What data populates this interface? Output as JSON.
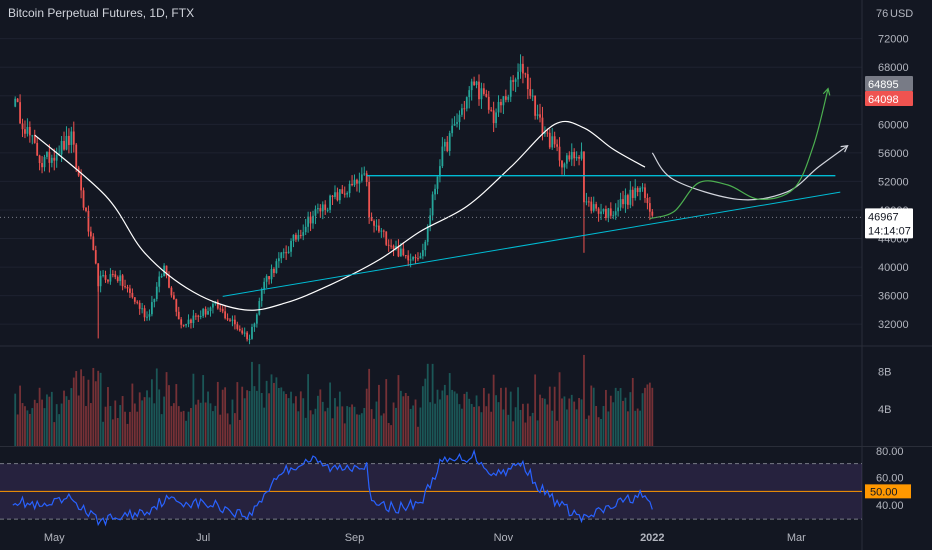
{
  "title": "Bitcoin Perpetual Futures, 1D, FTX",
  "currency": "USD",
  "price_axis_top_partial": "76",
  "colors": {
    "background": "#131722",
    "up": "#26a69a",
    "down": "#ef5350",
    "moving_average": "#ffffff",
    "channel_line": "#00bcd4",
    "projection_green": "#4caf50",
    "projection_white": "#d1d4dc",
    "rsi_line": "#2962ff",
    "rsi_band": "#7e57c2",
    "rsi_midline": "#ff9800"
  },
  "price_tags": {
    "high_label": "64895",
    "low_label": "64098",
    "current_label": "46967",
    "countdown": "14:14:07"
  },
  "rsi_axis": {
    "mid_label": "50.00"
  },
  "chart_data": [
    {
      "type": "candlestick",
      "title": "Bitcoin Perpetual Futures, 1D, FTX",
      "x_labels": [
        "May",
        "Jul",
        "Sep",
        "Nov",
        "2022",
        "Mar"
      ],
      "y_ticks": [
        32000,
        36000,
        40000,
        44000,
        48000,
        52000,
        56000,
        60000,
        64000,
        68000,
        72000
      ],
      "y_tick_labels": [
        "32000",
        "36000",
        "40000",
        "44000",
        "48000",
        "52000",
        "56000",
        "60000",
        "64000",
        "68000",
        "72000"
      ],
      "ylim": [
        29500,
        77000
      ],
      "key_points": [
        {
          "date": "2021-04-14",
          "price": 63500
        },
        {
          "date": "2021-04-26",
          "price": 54500
        },
        {
          "date": "2021-05-08",
          "price": 58000
        },
        {
          "date": "2021-05-19",
          "price": 38000
        },
        {
          "date": "2021-05-26",
          "price": 39000
        },
        {
          "date": "2021-06-08",
          "price": 33000
        },
        {
          "date": "2021-06-15",
          "price": 40000
        },
        {
          "date": "2021-06-22",
          "price": 32000
        },
        {
          "date": "2021-07-06",
          "price": 34500
        },
        {
          "date": "2021-07-20",
          "price": 30000
        },
        {
          "date": "2021-07-26",
          "price": 38000
        },
        {
          "date": "2021-08-14",
          "price": 47000
        },
        {
          "date": "2021-08-23",
          "price": 49500
        },
        {
          "date": "2021-09-06",
          "price": 52500
        },
        {
          "date": "2021-09-07",
          "price": 46500
        },
        {
          "date": "2021-09-21",
          "price": 41500
        },
        {
          "date": "2021-09-29",
          "price": 42000
        },
        {
          "date": "2021-10-06",
          "price": 55000
        },
        {
          "date": "2021-10-20",
          "price": 66000
        },
        {
          "date": "2021-10-28",
          "price": 61000
        },
        {
          "date": "2021-11-09",
          "price": 68000
        },
        {
          "date": "2021-11-16",
          "price": 60000
        },
        {
          "date": "2021-11-26",
          "price": 54500
        },
        {
          "date": "2021-12-03",
          "price": 56500
        },
        {
          "date": "2021-12-04",
          "price": 49000
        },
        {
          "date": "2021-12-14",
          "price": 47500
        },
        {
          "date": "2021-12-27",
          "price": 51000
        },
        {
          "date": "2022-01-01",
          "price": 47200
        }
      ],
      "moving_average_points": [
        {
          "date": "2021-04-23",
          "value": 58500
        },
        {
          "date": "2021-05-22",
          "value": 50000
        },
        {
          "date": "2021-06-07",
          "value": 42000
        },
        {
          "date": "2021-06-27",
          "value": 36500
        },
        {
          "date": "2021-07-18",
          "value": 34000
        },
        {
          "date": "2021-08-04",
          "value": 35000
        },
        {
          "date": "2021-08-22",
          "value": 37500
        },
        {
          "date": "2021-09-11",
          "value": 41000
        },
        {
          "date": "2021-09-28",
          "value": 45000
        },
        {
          "date": "2021-10-17",
          "value": 48500
        },
        {
          "date": "2021-11-04",
          "value": 54000
        },
        {
          "date": "2021-11-22",
          "value": 60000
        },
        {
          "date": "2021-12-04",
          "value": 59500
        },
        {
          "date": "2021-12-16",
          "value": 56500
        },
        {
          "date": "2021-12-29",
          "value": 54000
        }
      ],
      "resistance_line": {
        "from": {
          "date": "2021-09-06",
          "price": 52800
        },
        "to": {
          "date": "2022-03-17",
          "price": 52800
        }
      },
      "support_line": {
        "from": {
          "date": "2021-07-09",
          "price": 35900
        },
        "to": {
          "date": "2022-03-19",
          "price": 50500
        }
      },
      "projection_green": [
        {
          "date": "2021-12-31",
          "price": 46800
        },
        {
          "date": "2022-01-10",
          "price": 47800
        },
        {
          "date": "2022-01-20",
          "price": 51800
        },
        {
          "date": "2022-02-01",
          "price": 51500
        },
        {
          "date": "2022-02-14",
          "price": 49500
        },
        {
          "date": "2022-02-28",
          "price": 51000
        },
        {
          "date": "2022-03-08",
          "price": 57000
        },
        {
          "date": "2022-03-14",
          "price": 65000
        }
      ],
      "projection_white": [
        {
          "date": "2022-01-01",
          "price": 56000
        },
        {
          "date": "2022-01-10",
          "price": 52200
        },
        {
          "date": "2022-02-05",
          "price": 49500
        },
        {
          "date": "2022-02-25",
          "price": 50500
        },
        {
          "date": "2022-03-10",
          "price": 54000
        },
        {
          "date": "2022-03-22",
          "price": 57000
        }
      ]
    },
    {
      "type": "bar",
      "title": "Volume",
      "y_tick_labels": [
        "4B",
        "8B"
      ],
      "ylim": [
        0,
        10
      ],
      "max_value_billions": 9.8,
      "typical_range_billions": [
        2,
        6
      ]
    },
    {
      "type": "line",
      "title": "RSI",
      "y_tick_labels": [
        "40.00",
        "60.00",
        "80.00"
      ],
      "ylim": [
        25,
        82
      ],
      "band": [
        30,
        70
      ],
      "midline": 50,
      "points": [
        {
          "date": "2021-04-14",
          "value": 44
        },
        {
          "date": "2021-04-26",
          "value": 38
        },
        {
          "date": "2021-05-08",
          "value": 45
        },
        {
          "date": "2021-05-19",
          "value": 28
        },
        {
          "date": "2021-06-08",
          "value": 36
        },
        {
          "date": "2021-06-15",
          "value": 44
        },
        {
          "date": "2021-07-06",
          "value": 40
        },
        {
          "date": "2021-07-20",
          "value": 32
        },
        {
          "date": "2021-08-01",
          "value": 63
        },
        {
          "date": "2021-08-14",
          "value": 73
        },
        {
          "date": "2021-08-23",
          "value": 66
        },
        {
          "date": "2021-09-06",
          "value": 70
        },
        {
          "date": "2021-09-08",
          "value": 40
        },
        {
          "date": "2021-09-21",
          "value": 38
        },
        {
          "date": "2021-09-29",
          "value": 44
        },
        {
          "date": "2021-10-06",
          "value": 70
        },
        {
          "date": "2021-10-20",
          "value": 76
        },
        {
          "date": "2021-10-28",
          "value": 62
        },
        {
          "date": "2021-11-09",
          "value": 70
        },
        {
          "date": "2021-11-16",
          "value": 52
        },
        {
          "date": "2021-11-26",
          "value": 38
        },
        {
          "date": "2021-12-04",
          "value": 30
        },
        {
          "date": "2021-12-14",
          "value": 38
        },
        {
          "date": "2021-12-27",
          "value": 48
        },
        {
          "date": "2022-01-01",
          "value": 37
        }
      ]
    }
  ]
}
